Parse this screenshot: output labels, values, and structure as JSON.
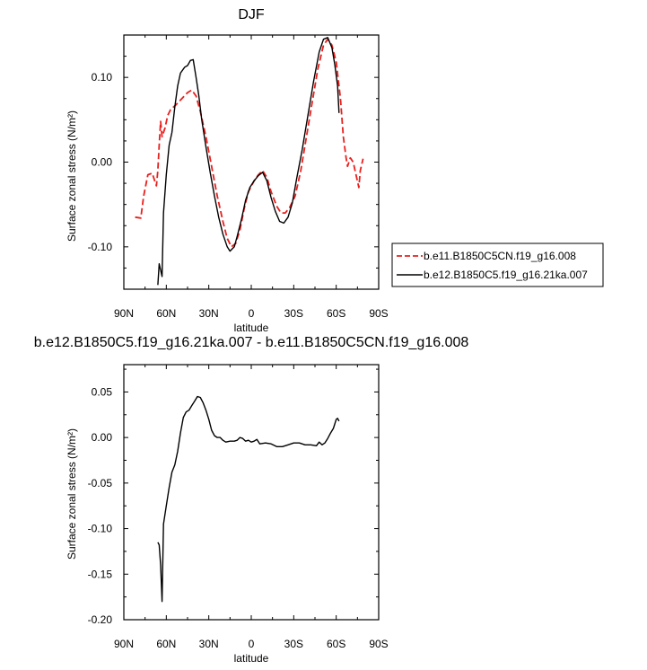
{
  "chart_data": [
    {
      "type": "line",
      "title": "DJF",
      "xlabel": "latitude",
      "ylabel": "Surface zonal stress (N/m²)",
      "xlim": [
        90,
        -90
      ],
      "ylim": [
        -0.15,
        0.15
      ],
      "xticks": [
        {
          "v": 90,
          "label": "90N"
        },
        {
          "v": 60,
          "label": "60N"
        },
        {
          "v": 30,
          "label": "30N"
        },
        {
          "v": 0,
          "label": "0"
        },
        {
          "v": -30,
          "label": "30S"
        },
        {
          "v": -60,
          "label": "60S"
        },
        {
          "v": -90,
          "label": "90S"
        }
      ],
      "yticks": [
        {
          "v": 0.1,
          "label": "0.10"
        },
        {
          "v": 0.0,
          "label": "0.00"
        },
        {
          "v": -0.1,
          "label": "-0.10"
        }
      ],
      "legend_position": "right-outside",
      "series": [
        {
          "name": "b.e11.B1850C5CN.f19_g16.008",
          "color": "#e8201e",
          "dash": "dashed",
          "points": [
            [
              82,
              -0.065
            ],
            [
              78,
              -0.066
            ],
            [
              76,
              -0.04
            ],
            [
              73,
              -0.015
            ],
            [
              70,
              -0.013
            ],
            [
              67,
              -0.028
            ],
            [
              66,
              -0.01
            ],
            [
              65,
              0.02
            ],
            [
              64,
              0.048
            ],
            [
              63,
              0.03
            ],
            [
              61,
              0.04
            ],
            [
              59,
              0.055
            ],
            [
              57,
              0.062
            ],
            [
              53,
              0.068
            ],
            [
              49,
              0.075
            ],
            [
              45,
              0.082
            ],
            [
              42,
              0.085
            ],
            [
              39,
              0.078
            ],
            [
              36,
              0.06
            ],
            [
              32,
              0.03
            ],
            [
              28,
              -0.005
            ],
            [
              24,
              -0.04
            ],
            [
              20,
              -0.07
            ],
            [
              17,
              -0.09
            ],
            [
              14,
              -0.1
            ],
            [
              11,
              -0.096
            ],
            [
              8,
              -0.08
            ],
            [
              5,
              -0.055
            ],
            [
              2,
              -0.035
            ],
            [
              -2,
              -0.022
            ],
            [
              -5,
              -0.015
            ],
            [
              -8,
              -0.01
            ],
            [
              -11,
              -0.018
            ],
            [
              -14,
              -0.035
            ],
            [
              -18,
              -0.052
            ],
            [
              -21,
              -0.06
            ],
            [
              -24,
              -0.06
            ],
            [
              -27,
              -0.054
            ],
            [
              -31,
              -0.04
            ],
            [
              -35,
              -0.01
            ],
            [
              -39,
              0.03
            ],
            [
              -43,
              0.07
            ],
            [
              -47,
              0.11
            ],
            [
              -51,
              0.138
            ],
            [
              -54,
              0.145
            ],
            [
              -57,
              0.138
            ],
            [
              -60,
              0.118
            ],
            [
              -63,
              0.075
            ],
            [
              -65,
              0.03
            ],
            [
              -67,
              0.005
            ],
            [
              -68,
              -0.005
            ],
            [
              -70,
              0.005
            ],
            [
              -72,
              0.0
            ],
            [
              -76,
              -0.03
            ],
            [
              -77,
              -0.01
            ],
            [
              -79,
              0.004
            ]
          ]
        },
        {
          "name": "b.e12.B1850C5.f19_g16.21ka.007",
          "color": "#000000",
          "dash": "solid",
          "points": [
            [
              66,
              -0.145
            ],
            [
              65,
              -0.12
            ],
            [
              63,
              -0.135
            ],
            [
              62,
              -0.06
            ],
            [
              60,
              -0.015
            ],
            [
              58,
              0.02
            ],
            [
              56,
              0.035
            ],
            [
              54,
              0.065
            ],
            [
              52,
              0.09
            ],
            [
              50,
              0.105
            ],
            [
              47,
              0.112
            ],
            [
              45,
              0.114
            ],
            [
              43,
              0.12
            ],
            [
              41,
              0.121
            ],
            [
              39,
              0.1
            ],
            [
              37,
              0.078
            ],
            [
              35,
              0.05
            ],
            [
              32,
              0.018
            ],
            [
              29,
              -0.012
            ],
            [
              26,
              -0.04
            ],
            [
              23,
              -0.065
            ],
            [
              20,
              -0.085
            ],
            [
              17,
              -0.1
            ],
            [
              15,
              -0.105
            ],
            [
              12,
              -0.1
            ],
            [
              10,
              -0.088
            ],
            [
              7,
              -0.068
            ],
            [
              4,
              -0.045
            ],
            [
              1,
              -0.03
            ],
            [
              -2,
              -0.022
            ],
            [
              -5,
              -0.016
            ],
            [
              -8,
              -0.012
            ],
            [
              -11,
              -0.022
            ],
            [
              -14,
              -0.042
            ],
            [
              -17,
              -0.058
            ],
            [
              -20,
              -0.07
            ],
            [
              -23,
              -0.072
            ],
            [
              -26,
              -0.065
            ],
            [
              -29,
              -0.048
            ],
            [
              -32,
              -0.02
            ],
            [
              -36,
              0.015
            ],
            [
              -40,
              0.055
            ],
            [
              -44,
              0.095
            ],
            [
              -48,
              0.13
            ],
            [
              -51,
              0.145
            ],
            [
              -54,
              0.147
            ],
            [
              -57,
              0.135
            ],
            [
              -59,
              0.115
            ],
            [
              -61,
              0.09
            ],
            [
              -62,
              0.058
            ]
          ]
        }
      ]
    },
    {
      "type": "line",
      "title": "b.e12.B1850C5.f19_g16.21ka.007 - b.e11.B1850C5CN.f19_g16.008",
      "xlabel": "latitude",
      "ylabel": "Surface zonal stress (N/m²)",
      "xlim": [
        90,
        -90
      ],
      "ylim": [
        -0.2,
        0.08
      ],
      "xticks": [
        {
          "v": 90,
          "label": "90N"
        },
        {
          "v": 60,
          "label": "60N"
        },
        {
          "v": 30,
          "label": "30N"
        },
        {
          "v": 0,
          "label": "0"
        },
        {
          "v": -30,
          "label": "30S"
        },
        {
          "v": -60,
          "label": "60S"
        },
        {
          "v": -90,
          "label": "90S"
        }
      ],
      "yticks": [
        {
          "v": 0.05,
          "label": "0.05"
        },
        {
          "v": 0.0,
          "label": "0.00"
        },
        {
          "v": -0.05,
          "label": "-0.05"
        },
        {
          "v": -0.1,
          "label": "-0.10"
        },
        {
          "v": -0.15,
          "label": "-0.15"
        },
        {
          "v": -0.2,
          "label": "-0.20"
        }
      ],
      "series": [
        {
          "color": "#000000",
          "dash": "solid",
          "points": [
            [
              66,
              -0.115
            ],
            [
              65,
              -0.118
            ],
            [
              64,
              -0.14
            ],
            [
              63,
              -0.18
            ],
            [
              62,
              -0.095
            ],
            [
              60,
              -0.075
            ],
            [
              58,
              -0.055
            ],
            [
              56,
              -0.038
            ],
            [
              54,
              -0.03
            ],
            [
              52,
              -0.015
            ],
            [
              50,
              0.005
            ],
            [
              48,
              0.022
            ],
            [
              46,
              0.028
            ],
            [
              44,
              0.03
            ],
            [
              42,
              0.035
            ],
            [
              40,
              0.04
            ],
            [
              38,
              0.045
            ],
            [
              36,
              0.044
            ],
            [
              34,
              0.038
            ],
            [
              32,
              0.03
            ],
            [
              30,
              0.02
            ],
            [
              28,
              0.008
            ],
            [
              26,
              0.002
            ],
            [
              24,
              0.0
            ],
            [
              22,
              0.0
            ],
            [
              20,
              -0.003
            ],
            [
              18,
              -0.005
            ],
            [
              15,
              -0.004
            ],
            [
              12,
              -0.004
            ],
            [
              10,
              -0.003
            ],
            [
              8,
              0.0
            ],
            [
              6,
              -0.001
            ],
            [
              4,
              -0.004
            ],
            [
              2,
              -0.003
            ],
            [
              0,
              -0.005
            ],
            [
              -2,
              -0.004
            ],
            [
              -4,
              -0.002
            ],
            [
              -6,
              -0.007
            ],
            [
              -10,
              -0.006
            ],
            [
              -14,
              -0.007
            ],
            [
              -18,
              -0.01
            ],
            [
              -22,
              -0.01
            ],
            [
              -26,
              -0.008
            ],
            [
              -30,
              -0.006
            ],
            [
              -34,
              -0.006
            ],
            [
              -38,
              -0.008
            ],
            [
              -42,
              -0.008
            ],
            [
              -46,
              -0.009
            ],
            [
              -48,
              -0.005
            ],
            [
              -50,
              -0.008
            ],
            [
              -52,
              -0.006
            ],
            [
              -54,
              -0.001
            ],
            [
              -56,
              0.005
            ],
            [
              -58,
              0.01
            ],
            [
              -60,
              0.02
            ],
            [
              -61,
              0.021
            ],
            [
              -62,
              0.018
            ]
          ]
        }
      ]
    }
  ]
}
